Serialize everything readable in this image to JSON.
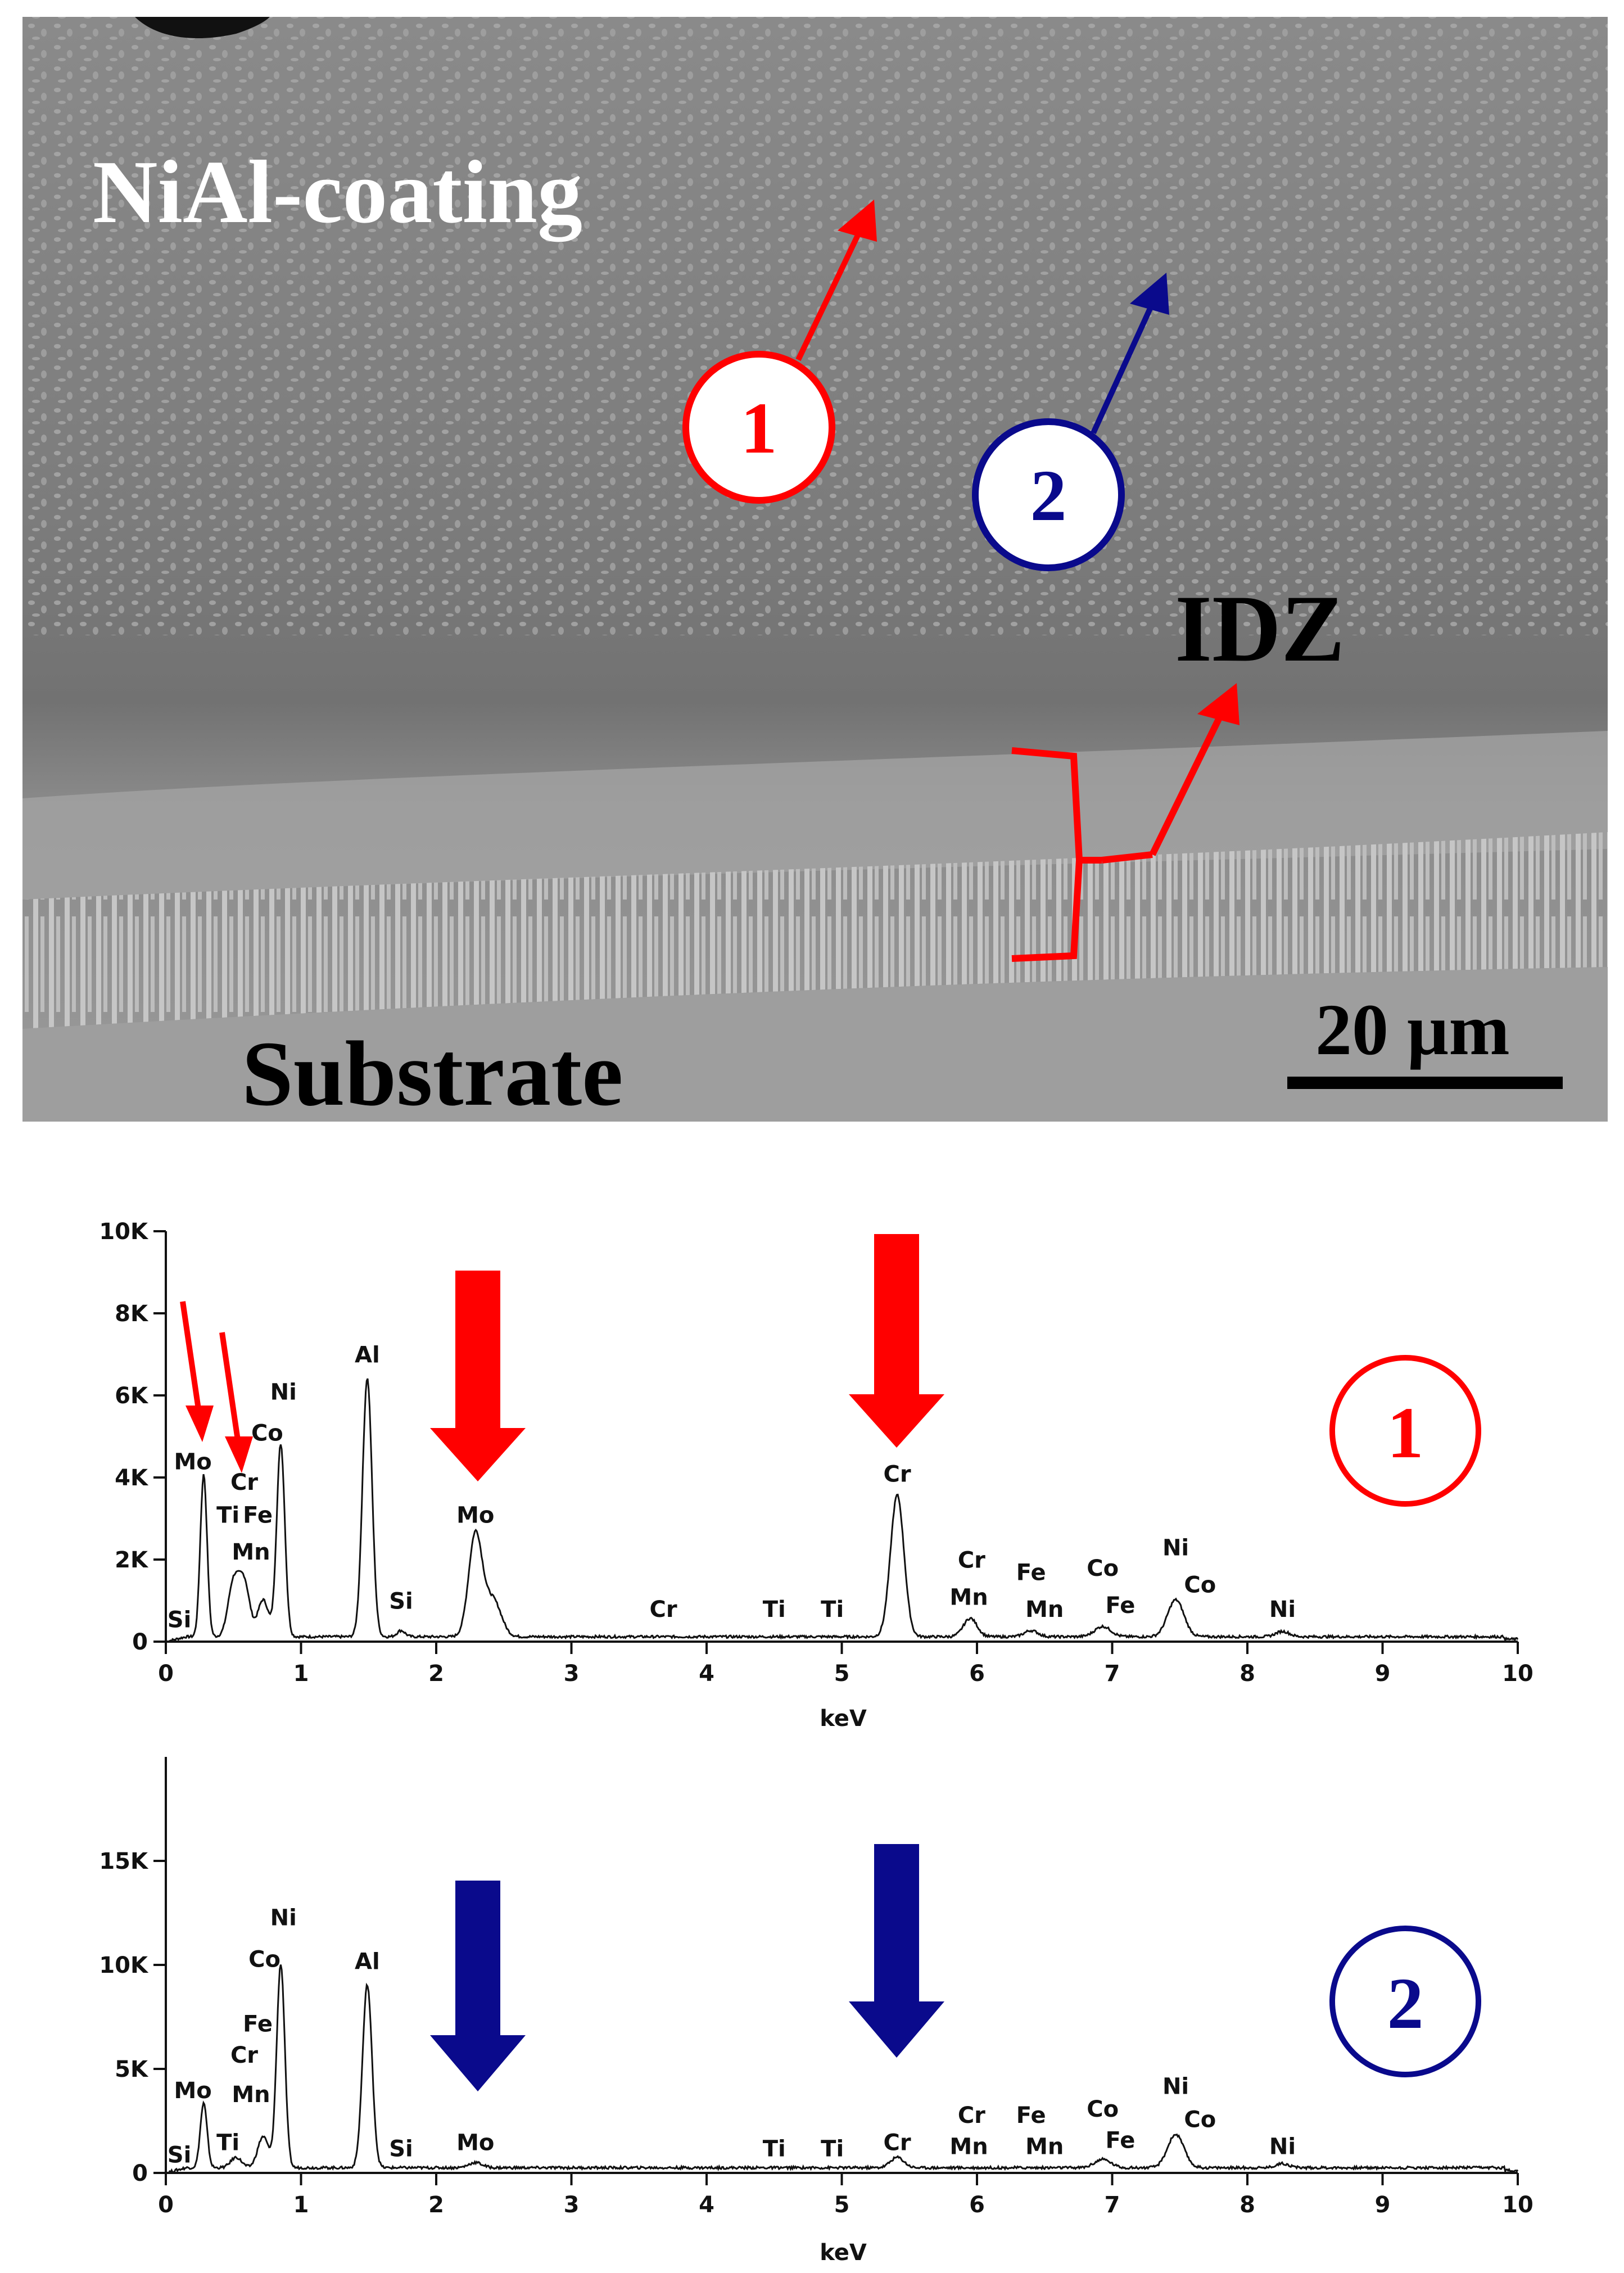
{
  "micrograph": {
    "labels": {
      "coating": "NiAl-coating",
      "idz": "IDZ",
      "substrate": "Substrate",
      "scale_bar": "20 µm"
    },
    "markers": [
      {
        "number": "1",
        "color": "#ff0000"
      },
      {
        "number": "2",
        "color": "#0a0a8c"
      }
    ]
  },
  "colors": {
    "red": "#ff0000",
    "blue": "#0a0a8c",
    "line": "#111111"
  },
  "chart_data": [
    {
      "type": "line",
      "marker": "1",
      "xlabel": "keV",
      "xlim": [
        0,
        10
      ],
      "ylim": [
        0,
        10000
      ],
      "x_ticks": [
        "0",
        "1",
        "2",
        "3",
        "4",
        "5",
        "6",
        "7",
        "8",
        "9",
        "10"
      ],
      "y_ticks": [
        "0",
        "2K",
        "4K",
        "6K",
        "8K",
        "10K"
      ],
      "y_tick_values": [
        0,
        2000,
        4000,
        6000,
        8000,
        10000
      ],
      "baseline": 120,
      "peaks": [
        {
          "x": 0.28,
          "y": 3950,
          "w": 0.025
        },
        {
          "x": 0.5,
          "y": 1300,
          "w": 0.04
        },
        {
          "x": 0.58,
          "y": 1300,
          "w": 0.04
        },
        {
          "x": 0.72,
          "y": 900,
          "w": 0.04
        },
        {
          "x": 0.85,
          "y": 4700,
          "w": 0.03
        },
        {
          "x": 1.49,
          "y": 6300,
          "w": 0.035
        },
        {
          "x": 1.74,
          "y": 150,
          "w": 0.03
        },
        {
          "x": 2.29,
          "y": 2500,
          "w": 0.05
        },
        {
          "x": 2.42,
          "y": 900,
          "w": 0.06
        },
        {
          "x": 5.41,
          "y": 3450,
          "w": 0.05
        },
        {
          "x": 5.95,
          "y": 450,
          "w": 0.05
        },
        {
          "x": 6.4,
          "y": 150,
          "w": 0.05
        },
        {
          "x": 6.93,
          "y": 250,
          "w": 0.06
        },
        {
          "x": 7.47,
          "y": 900,
          "w": 0.06
        },
        {
          "x": 8.26,
          "y": 130,
          "w": 0.05
        }
      ],
      "element_labels": [
        {
          "text": "Si",
          "x": 0.1,
          "y": 350
        },
        {
          "text": "Mo",
          "x": 0.2,
          "y": 4200
        },
        {
          "text": "Cr",
          "x": 0.58,
          "y": 3700
        },
        {
          "text": "Ti",
          "x": 0.46,
          "y": 2900
        },
        {
          "text": "Fe",
          "x": 0.68,
          "y": 2900
        },
        {
          "text": "Mn",
          "x": 0.63,
          "y": 2000
        },
        {
          "text": "Co",
          "x": 0.75,
          "y": 4900
        },
        {
          "text": "Ni",
          "x": 0.87,
          "y": 5900
        },
        {
          "text": "Al",
          "x": 1.49,
          "y": 6800
        },
        {
          "text": "Si",
          "x": 1.74,
          "y": 800
        },
        {
          "text": "Mo",
          "x": 2.29,
          "y": 2900
        },
        {
          "text": "Cr",
          "x": 3.68,
          "y": 600
        },
        {
          "text": "Ti",
          "x": 4.5,
          "y": 600
        },
        {
          "text": "Ti",
          "x": 4.93,
          "y": 600
        },
        {
          "text": "Cr",
          "x": 5.41,
          "y": 3900
        },
        {
          "text": "Cr",
          "x": 5.96,
          "y": 1800
        },
        {
          "text": "Mn",
          "x": 5.94,
          "y": 900
        },
        {
          "text": "Fe",
          "x": 6.4,
          "y": 1500
        },
        {
          "text": "Mn",
          "x": 6.5,
          "y": 600
        },
        {
          "text": "Co",
          "x": 6.93,
          "y": 1600
        },
        {
          "text": "Fe",
          "x": 7.06,
          "y": 700
        },
        {
          "text": "Ni",
          "x": 7.47,
          "y": 2100
        },
        {
          "text": "Co",
          "x": 7.65,
          "y": 1200
        },
        {
          "text": "Ni",
          "x": 8.26,
          "y": 600
        }
      ]
    },
    {
      "type": "line",
      "marker": "2",
      "xlabel": "keV",
      "xlim": [
        0,
        10
      ],
      "ylim": [
        0,
        20000
      ],
      "x_ticks": [
        "0",
        "1",
        "2",
        "3",
        "4",
        "5",
        "6",
        "7",
        "8",
        "9",
        "10"
      ],
      "y_ticks": [
        "0",
        "5K",
        "10K",
        "15K"
      ],
      "y_tick_values": [
        0,
        5000,
        10000,
        15000
      ],
      "baseline": 250,
      "peaks": [
        {
          "x": 0.28,
          "y": 3100,
          "w": 0.025
        },
        {
          "x": 0.52,
          "y": 500,
          "w": 0.04
        },
        {
          "x": 0.72,
          "y": 1500,
          "w": 0.04
        },
        {
          "x": 0.85,
          "y": 9800,
          "w": 0.03
        },
        {
          "x": 1.49,
          "y": 8800,
          "w": 0.035
        },
        {
          "x": 2.29,
          "y": 250,
          "w": 0.05
        },
        {
          "x": 5.41,
          "y": 500,
          "w": 0.05
        },
        {
          "x": 6.93,
          "y": 400,
          "w": 0.06
        },
        {
          "x": 7.47,
          "y": 1600,
          "w": 0.06
        },
        {
          "x": 8.26,
          "y": 200,
          "w": 0.05
        }
      ],
      "element_labels": [
        {
          "text": "Si",
          "x": 0.1,
          "y": 500
        },
        {
          "text": "Mo",
          "x": 0.2,
          "y": 3600
        },
        {
          "text": "Ti",
          "x": 0.46,
          "y": 1100
        },
        {
          "text": "Cr",
          "x": 0.58,
          "y": 5300
        },
        {
          "text": "Mn",
          "x": 0.63,
          "y": 3400
        },
        {
          "text": "Fe",
          "x": 0.68,
          "y": 6800
        },
        {
          "text": "Co",
          "x": 0.73,
          "y": 9900
        },
        {
          "text": "Ni",
          "x": 0.87,
          "y": 11900
        },
        {
          "text": "Al",
          "x": 1.49,
          "y": 9800
        },
        {
          "text": "Si",
          "x": 1.74,
          "y": 800
        },
        {
          "text": "Mo",
          "x": 2.29,
          "y": 1100
        },
        {
          "text": "Ti",
          "x": 4.5,
          "y": 800
        },
        {
          "text": "Ti",
          "x": 4.93,
          "y": 800
        },
        {
          "text": "Cr",
          "x": 5.41,
          "y": 1100
        },
        {
          "text": "Cr",
          "x": 5.96,
          "y": 2400
        },
        {
          "text": "Mn",
          "x": 5.94,
          "y": 900
        },
        {
          "text": "Fe",
          "x": 6.4,
          "y": 2400
        },
        {
          "text": "Mn",
          "x": 6.5,
          "y": 900
        },
        {
          "text": "Co",
          "x": 6.93,
          "y": 2700
        },
        {
          "text": "Fe",
          "x": 7.06,
          "y": 1200
        },
        {
          "text": "Ni",
          "x": 7.47,
          "y": 3800
        },
        {
          "text": "Co",
          "x": 7.65,
          "y": 2200
        },
        {
          "text": "Ni",
          "x": 8.26,
          "y": 900
        }
      ]
    }
  ]
}
